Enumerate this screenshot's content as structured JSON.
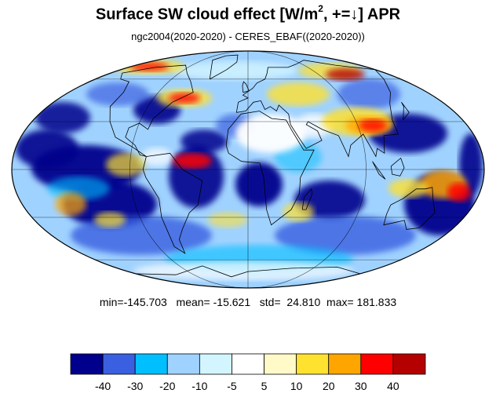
{
  "title": {
    "prefix": "Surface SW cloud effect [W/m",
    "superscript": "2",
    "suffix": ", +=↓]  APR"
  },
  "subtitle": "ngc2004(2020-2020) - CERES_EBAF((2020-2020))",
  "stats": {
    "min_label": "min=",
    "min": "-145.703",
    "mean_label": "mean=",
    "mean": "-15.621",
    "std_label": "std=",
    "std": "24.810",
    "max_label": "max=",
    "max": "181.833"
  },
  "map": {
    "projection": "mollweide",
    "field": "surface shortwave cloud radiative effect difference",
    "grid": true
  },
  "colorbar": {
    "colors": [
      "#00008c",
      "#3a5fe0",
      "#00bfff",
      "#a0d2ff",
      "#d2f5ff",
      "#ffffff",
      "#fffac8",
      "#ffe130",
      "#ffa500",
      "#ff0000",
      "#b40000"
    ],
    "labels": [
      "-40",
      "-30",
      "-20",
      "-10",
      "-5",
      "5",
      "10",
      "20",
      "30",
      "40"
    ]
  }
}
